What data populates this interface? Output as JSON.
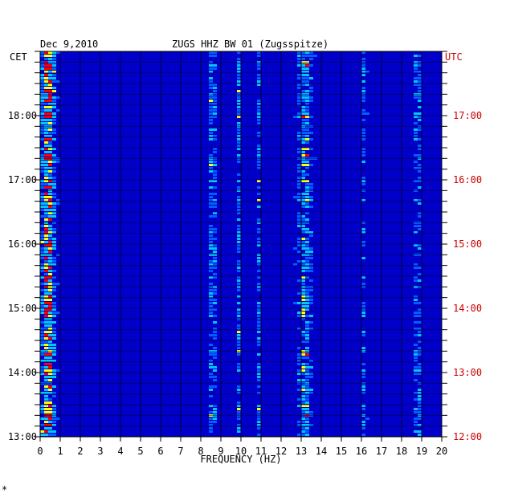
{
  "chart_data": {
    "type": "heatmap",
    "title": "ZUGS HHZ BW 01 (Zugsspitze)",
    "date": "Dec 9,2010",
    "left_zone": "CET",
    "right_zone": "UTC",
    "xlabel": "FREQUENCY (HZ)",
    "x_ticks": [
      "0",
      "1",
      "2",
      "3",
      "4",
      "5",
      "6",
      "7",
      "8",
      "9",
      "10",
      "11",
      "12",
      "13",
      "14",
      "15",
      "16",
      "17",
      "18",
      "19",
      "20"
    ],
    "xlim": [
      0,
      20
    ],
    "left_time_labels": [
      "18:00",
      "17:00",
      "16:00",
      "15:00",
      "14:00",
      "13:00"
    ],
    "right_time_labels": [
      "17:00",
      "16:00",
      "15:00",
      "14:00",
      "13:00",
      "12:00"
    ],
    "time_range_cet": [
      "13:00",
      "19:00"
    ],
    "colors": {
      "low": "#0000c8",
      "mid": "#00c8ff",
      "high": "#ffff00",
      "peak": "#ff0000",
      "right_labels": "#cc0000"
    },
    "energy_bands_hz": [
      {
        "center": 0.4,
        "width": 0.35,
        "strength": 0.95
      },
      {
        "center": 8.6,
        "width": 0.18,
        "strength": 0.55
      },
      {
        "center": 9.9,
        "width": 0.12,
        "strength": 0.45
      },
      {
        "center": 10.9,
        "width": 0.12,
        "strength": 0.4
      },
      {
        "center": 13.2,
        "width": 0.35,
        "strength": 0.6
      },
      {
        "center": 16.1,
        "width": 0.15,
        "strength": 0.35
      },
      {
        "center": 18.8,
        "width": 0.2,
        "strength": 0.45
      }
    ]
  },
  "footer_mark": "*"
}
